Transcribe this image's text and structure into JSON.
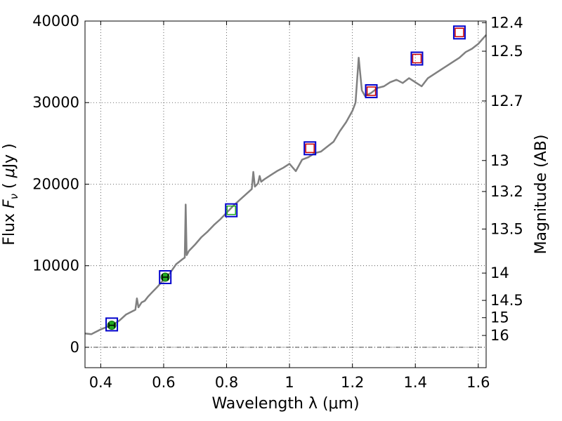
{
  "chart_data": {
    "type": "line",
    "xlabel": "Wavelength  λ (μm)",
    "ylabel_parts": [
      "Flux ",
      "F",
      "ν",
      " ( ",
      "μ",
      "Jy )"
    ],
    "y2label": "Magnitude (AB)",
    "xlim": [
      0.35,
      1.625
    ],
    "ylim": [
      -2500,
      40000
    ],
    "x_ticks": [
      0.4,
      0.6,
      0.8,
      1.0,
      1.2,
      1.4,
      1.6
    ],
    "x_tick_labels": [
      "0.4",
      "0.6",
      "0.8",
      "1",
      "1.2",
      "1.4",
      "1.6"
    ],
    "y_ticks": [
      0,
      10000,
      20000,
      30000,
      40000
    ],
    "y_tick_labels": [
      "0",
      "10000",
      "20000",
      "30000",
      "40000"
    ],
    "magnitude_ticks": [
      {
        "label": "12.4",
        "flux": 39800
      },
      {
        "label": "12.5",
        "flux": 36300
      },
      {
        "label": "12.7",
        "flux": 30200
      },
      {
        "label": "13",
        "flux": 22900
      },
      {
        "label": "13.2",
        "flux": 19100
      },
      {
        "label": "13.5",
        "flux": 14500
      },
      {
        "label": "14",
        "flux": 9100
      },
      {
        "label": "14.5",
        "flux": 5750
      },
      {
        "label": "15",
        "flux": 3630
      },
      {
        "label": "16",
        "flux": 1450
      }
    ],
    "grid": true,
    "spectrum": {
      "color": "#808080",
      "x": [
        0.35,
        0.37,
        0.38,
        0.39,
        0.4,
        0.42,
        0.44,
        0.46,
        0.48,
        0.5,
        0.51,
        0.515,
        0.52,
        0.53,
        0.54,
        0.55,
        0.56,
        0.58,
        0.6,
        0.62,
        0.64,
        0.65,
        0.66,
        0.667,
        0.67,
        0.673,
        0.68,
        0.7,
        0.72,
        0.74,
        0.76,
        0.78,
        0.8,
        0.82,
        0.84,
        0.86,
        0.88,
        0.885,
        0.89,
        0.9,
        0.905,
        0.91,
        0.92,
        0.94,
        0.96,
        0.98,
        1.0,
        1.02,
        1.04,
        1.06,
        1.08,
        1.1,
        1.12,
        1.14,
        1.16,
        1.18,
        1.2,
        1.21,
        1.22,
        1.23,
        1.24,
        1.26,
        1.28,
        1.3,
        1.32,
        1.34,
        1.36,
        1.38,
        1.4,
        1.42,
        1.44,
        1.46,
        1.48,
        1.5,
        1.52,
        1.54,
        1.56,
        1.58,
        1.6,
        1.625
      ],
      "y": [
        1700,
        1600,
        1800,
        2000,
        2200,
        2500,
        2800,
        3300,
        4000,
        4400,
        4600,
        6000,
        4900,
        5500,
        5700,
        6200,
        6600,
        7400,
        8300,
        9100,
        10200,
        10500,
        10800,
        11000,
        17500,
        11300,
        11800,
        12600,
        13500,
        14200,
        15000,
        15700,
        16500,
        17300,
        18000,
        18700,
        19400,
        21500,
        19700,
        20100,
        21000,
        20300,
        20600,
        21100,
        21600,
        22000,
        22500,
        21600,
        23000,
        23300,
        23800,
        24000,
        24600,
        25200,
        26500,
        27600,
        29000,
        30000,
        35500,
        31500,
        30800,
        31200,
        31800,
        32000,
        32500,
        32800,
        32400,
        33000,
        32500,
        32000,
        33000,
        33500,
        34000,
        34500,
        35000,
        35500,
        36200,
        36600,
        37200,
        38300
      ]
    },
    "photometry": [
      {
        "x": 0.435,
        "y": 2700,
        "model_y": 2800,
        "marker": "filled-circle",
        "color": "#22aa22",
        "error": 300
      },
      {
        "x": 0.605,
        "y": 8600,
        "model_y": 8600,
        "marker": "filled-circle",
        "color": "#22aa22",
        "error": 400
      },
      {
        "x": 0.815,
        "y": 16800,
        "model_y": 16800,
        "marker": "open-square",
        "color": "#22aa22"
      },
      {
        "x": 1.065,
        "y": 24400,
        "model_y": 24400,
        "marker": "open-square",
        "color": "#cc0000"
      },
      {
        "x": 1.26,
        "y": 31400,
        "model_y": 31400,
        "marker": "open-square",
        "color": "#cc0000"
      },
      {
        "x": 1.405,
        "y": 35400,
        "model_y": 35400,
        "marker": "open-square",
        "color": "#cc0000"
      },
      {
        "x": 1.54,
        "y": 38600,
        "model_y": 38600,
        "marker": "open-square",
        "color": "#cc0000"
      }
    ],
    "model_marker_color": "#0000cc"
  }
}
